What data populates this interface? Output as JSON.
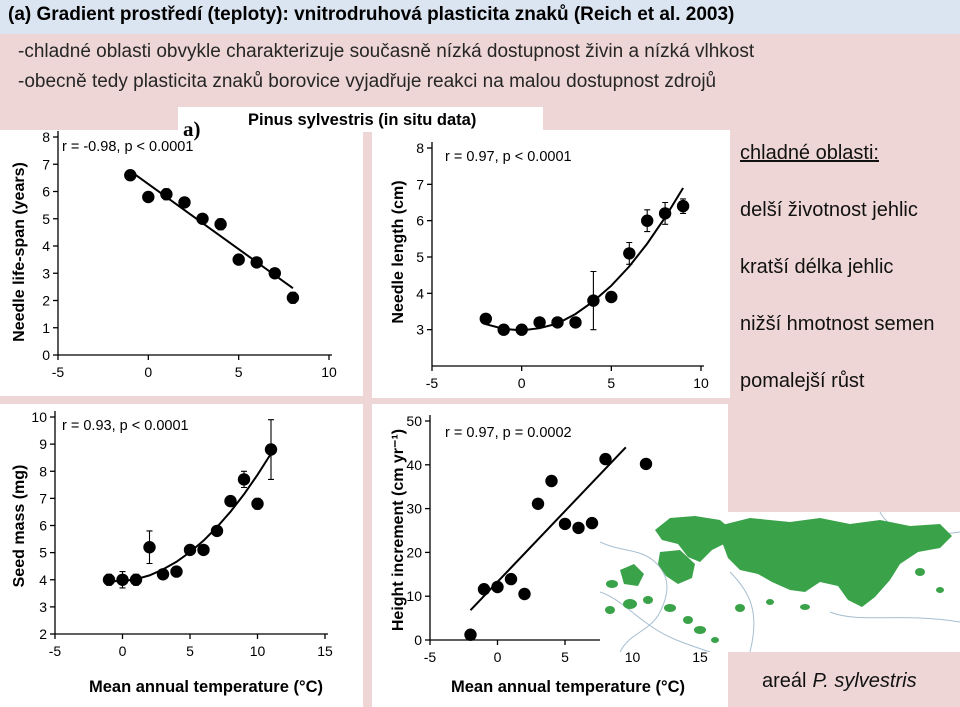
{
  "slide": {
    "title": "(a) Gradient prostředí (teploty): vnitrodruhová plasticita znaků (Reich et al. 2003)",
    "bullets": [
      "-chladné oblasti obvykle charakterizuje současně nízká dostupnost živin a nízká vlhkost",
      "-obecně tedy plasticita znaků borovice vyjadřuje reakci na malou dostupnost zdrojů"
    ],
    "side_heading": "chladné oblasti:",
    "side_items": [
      "delší životnost jehlic",
      "kratší délka jehlic",
      "nižší hmotnost semen",
      "pomalejší růst"
    ],
    "map_caption": {
      "prefix": "areál",
      "species": "P. sylvestris"
    },
    "colors": {
      "background": "#eed6d6",
      "title_bar": "#dbe5f1",
      "range": "#3aa34a",
      "marker": "#000000"
    }
  },
  "figure": {
    "panel_label": "a)",
    "title": "Pinus sylvestris (in situ data)"
  },
  "chart_data": [
    {
      "type": "scatter",
      "ylabel": "Needle life-span (years)",
      "annotation": "r = -0.98, p < 0.0001",
      "xlim": [
        -5,
        10
      ],
      "ylim": [
        0,
        8
      ],
      "x_ticks": [
        -5,
        0,
        5,
        10
      ],
      "y_ticks": [
        0,
        1,
        2,
        3,
        4,
        5,
        6,
        7,
        8
      ],
      "grid": false,
      "x": [
        -1,
        0,
        1,
        2,
        3,
        4,
        5,
        6,
        7,
        8
      ],
      "y": [
        6.6,
        5.8,
        5.9,
        5.6,
        5.0,
        4.8,
        3.5,
        3.4,
        3.0,
        2.1
      ],
      "y_err": [
        0,
        0,
        0.2,
        0,
        0,
        0.2,
        0,
        0,
        0,
        0.2
      ],
      "trend_line": {
        "x": [
          -1,
          8
        ],
        "y": [
          6.75,
          2.45
        ]
      }
    },
    {
      "type": "scatter",
      "ylabel": "Needle length (cm)",
      "annotation": "r = 0.97, p < 0.0001",
      "xlim": [
        -5,
        10
      ],
      "ylim": [
        2,
        8
      ],
      "x_ticks": [
        -5,
        0,
        5,
        10
      ],
      "y_ticks": [
        3,
        4,
        5,
        6,
        7,
        8
      ],
      "grid": false,
      "x": [
        -2,
        -1,
        0,
        1,
        2,
        3,
        4,
        5,
        6,
        7,
        8,
        9
      ],
      "y": [
        3.3,
        3.0,
        3.0,
        3.2,
        3.2,
        3.2,
        3.8,
        3.9,
        5.1,
        6.0,
        6.2,
        6.4
      ],
      "y_err": [
        0.1,
        0,
        0.1,
        0,
        0,
        0,
        0.8,
        0,
        0.3,
        0.3,
        0.3,
        0.2
      ],
      "trend_line": {
        "x": [
          -2,
          -1,
          0,
          1,
          2,
          3,
          4,
          5,
          6,
          7,
          8,
          9
        ],
        "y": [
          3.15,
          3.02,
          2.98,
          3.04,
          3.17,
          3.43,
          3.78,
          4.21,
          4.74,
          5.37,
          6.09,
          6.9
        ]
      }
    },
    {
      "type": "scatter",
      "ylabel": "Seed mass (mg)",
      "xlabel": "Mean annual temperature (°C)",
      "annotation": "r = 0.93, p < 0.0001",
      "xlim": [
        -5,
        15
      ],
      "ylim": [
        2,
        10
      ],
      "x_ticks": [
        -5,
        0,
        5,
        10,
        15
      ],
      "y_ticks": [
        2,
        3,
        4,
        5,
        6,
        7,
        8,
        9,
        10
      ],
      "grid": false,
      "x": [
        -1,
        0,
        1,
        2,
        3,
        4,
        5,
        6,
        7,
        8,
        9,
        10,
        11
      ],
      "y": [
        4.0,
        4.0,
        4.0,
        5.2,
        4.2,
        4.3,
        5.1,
        5.1,
        5.8,
        6.9,
        7.7,
        6.8,
        8.8
      ],
      "y_err": [
        0.2,
        0.3,
        0.2,
        0.6,
        0,
        0.1,
        0,
        0.1,
        0.1,
        0.1,
        0.3,
        0.2,
        1.1
      ],
      "trend_line": {
        "x": [
          -1,
          0,
          1,
          2,
          3,
          4,
          5,
          6,
          7,
          8,
          9,
          10,
          11
        ],
        "y": [
          3.95,
          3.95,
          4.02,
          4.16,
          4.38,
          4.66,
          5.02,
          5.44,
          5.94,
          6.51,
          7.15,
          7.87,
          8.65
        ]
      }
    },
    {
      "type": "scatter",
      "ylabel": "Height increment (cm yr⁻¹)",
      "xlabel": "Mean annual temperature (°C)",
      "annotation": "r = 0.97, p = 0.0002",
      "xlim": [
        -5,
        15
      ],
      "ylim": [
        0,
        50
      ],
      "x_ticks": [
        -5,
        0,
        5,
        10,
        15
      ],
      "y_ticks": [
        0,
        10,
        20,
        30,
        40,
        50
      ],
      "grid": false,
      "x": [
        -2,
        -1,
        0,
        1,
        2,
        3,
        4,
        5,
        6,
        7,
        8,
        11
      ],
      "y": [
        1.2,
        11.6,
        12.1,
        13.9,
        10.5,
        31.1,
        36.3,
        26.5,
        25.6,
        26.7,
        41.3,
        40.2
      ],
      "trend_line": {
        "x": [
          -2,
          9.5
        ],
        "y": [
          6.8,
          44.0
        ]
      }
    }
  ]
}
